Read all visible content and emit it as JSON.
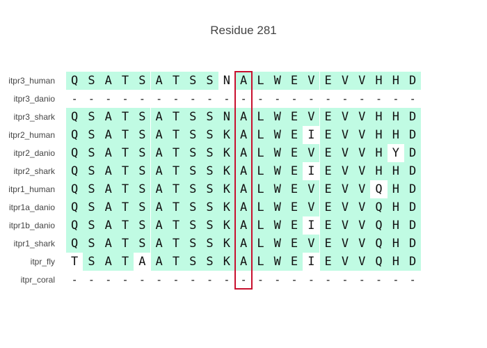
{
  "title": "Residue 281",
  "colors": {
    "match": "#c0fbe3",
    "mismatch": "#ffffff",
    "highlight": "#c8102e"
  },
  "highlight_column": 10,
  "rows": [
    {
      "name": "itpr3_human",
      "seq": "QSATSATSSNALWEVEVVHHD",
      "match": [
        1,
        1,
        1,
        1,
        1,
        1,
        1,
        1,
        1,
        0,
        1,
        1,
        1,
        1,
        1,
        1,
        1,
        1,
        1,
        1,
        1
      ]
    },
    {
      "name": "itpr3_danio",
      "seq": "---------------------",
      "match": [
        0,
        0,
        0,
        0,
        0,
        0,
        0,
        0,
        0,
        0,
        0,
        0,
        0,
        0,
        0,
        0,
        0,
        0,
        0,
        0,
        0
      ]
    },
    {
      "name": "itpr3_shark",
      "seq": "QSATSATSSNALWEVEVVHHD",
      "match": [
        1,
        1,
        1,
        1,
        1,
        1,
        1,
        1,
        1,
        1,
        1,
        1,
        1,
        1,
        1,
        1,
        1,
        1,
        1,
        1,
        1
      ]
    },
    {
      "name": "itpr2_human",
      "seq": "QSATSATSSKALWEIEVVHHD",
      "match": [
        1,
        1,
        1,
        1,
        1,
        1,
        1,
        1,
        1,
        1,
        1,
        1,
        1,
        1,
        0,
        1,
        1,
        1,
        1,
        1,
        1
      ]
    },
    {
      "name": "itpr2_danio",
      "seq": "QSATSATSSKALWEVEVVHYD",
      "match": [
        1,
        1,
        1,
        1,
        1,
        1,
        1,
        1,
        1,
        1,
        1,
        1,
        1,
        1,
        1,
        1,
        1,
        1,
        1,
        0,
        1
      ]
    },
    {
      "name": "itpr2_shark",
      "seq": "QSATSATSSKALWEIEVVHHD",
      "match": [
        1,
        1,
        1,
        1,
        1,
        1,
        1,
        1,
        1,
        1,
        1,
        1,
        1,
        1,
        0,
        1,
        1,
        1,
        1,
        1,
        1
      ]
    },
    {
      "name": "itpr1_human",
      "seq": "QSATSATSSKALWEVEVVQHD",
      "match": [
        1,
        1,
        1,
        1,
        1,
        1,
        1,
        1,
        1,
        1,
        1,
        1,
        1,
        1,
        1,
        1,
        1,
        1,
        0,
        1,
        1
      ]
    },
    {
      "name": "itpr1a_danio",
      "seq": "QSATSATSSKALWEVEVVQHD",
      "match": [
        1,
        1,
        1,
        1,
        1,
        1,
        1,
        1,
        1,
        1,
        1,
        1,
        1,
        1,
        1,
        1,
        1,
        1,
        1,
        1,
        1
      ]
    },
    {
      "name": "itpr1b_danio",
      "seq": "QSATSATSSKALWEIEVVQHD",
      "match": [
        1,
        1,
        1,
        1,
        1,
        1,
        1,
        1,
        1,
        1,
        1,
        1,
        1,
        1,
        0,
        1,
        1,
        1,
        1,
        1,
        1
      ]
    },
    {
      "name": "itpr1_shark",
      "seq": "QSATSATSSKALWEVEVVQHD",
      "match": [
        1,
        1,
        1,
        1,
        1,
        1,
        1,
        1,
        1,
        1,
        1,
        1,
        1,
        1,
        1,
        1,
        1,
        1,
        1,
        1,
        1
      ]
    },
    {
      "name": "itpr_fly",
      "seq": "TSATAATSSKALWEIEVVQHD",
      "match": [
        0,
        1,
        1,
        1,
        0,
        1,
        1,
        1,
        1,
        1,
        1,
        1,
        1,
        1,
        0,
        1,
        1,
        1,
        1,
        1,
        1
      ]
    },
    {
      "name": "itpr_coral",
      "seq": "---------------------",
      "match": [
        0,
        0,
        0,
        0,
        0,
        0,
        0,
        0,
        0,
        0,
        0,
        0,
        0,
        0,
        0,
        0,
        0,
        0,
        0,
        0,
        0
      ]
    }
  ]
}
